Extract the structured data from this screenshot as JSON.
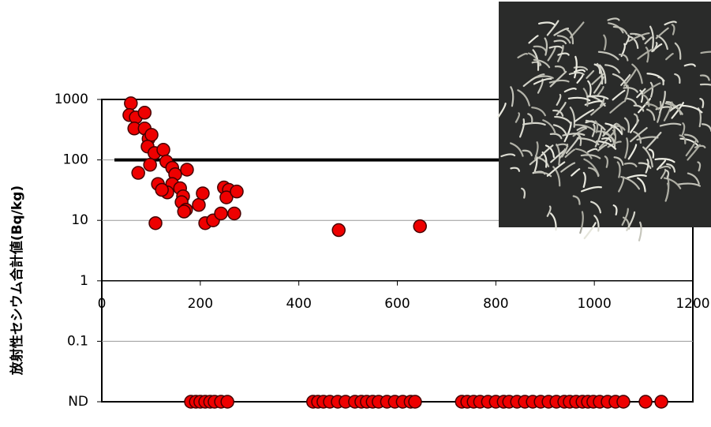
{
  "chart_data": {
    "type": "scatter",
    "ylabel": "放射性セシウム合計値(Bq/kg)",
    "xlim": [
      0,
      1200
    ],
    "xticks": [
      0,
      200,
      400,
      600,
      800,
      1000,
      1200
    ],
    "ylim": [
      0.01,
      1000
    ],
    "yticks": [
      1000,
      100,
      10,
      1,
      0.1,
      {
        "value": 0.01,
        "label": "ND"
      }
    ],
    "ylog": true,
    "grid": true,
    "xaxis_crosses": 1,
    "hline": 100,
    "series": [
      {
        "color": "#ee0000",
        "x": [
          59,
          56,
          69,
          87,
          66,
          87,
          95,
          101,
          93,
          107,
          98,
          125,
          131,
          74,
          114,
          143,
          149,
          173,
          143,
          133,
          122,
          159,
          165,
          162,
          171,
          167,
          109,
          197,
          205,
          210,
          226,
          242,
          248,
          258,
          253,
          269,
          274,
          481,
          646,
          181,
          191,
          200,
          210,
          220,
          229,
          242,
          255,
          429,
          439,
          450,
          463,
          479,
          495,
          514,
          527,
          538,
          550,
          562,
          579,
          595,
          611,
          627,
          636,
          731,
          742,
          755,
          768,
          784,
          800,
          816,
          827,
          843,
          859,
          875,
          891,
          907,
          923,
          939,
          950,
          963,
          976,
          987,
          998,
          1011,
          1027,
          1043,
          1059,
          1104,
          1136
        ],
        "y": [
          865,
          552,
          504,
          604,
          331,
          331,
          224,
          260,
          166,
          130,
          83,
          147,
          94,
          61,
          40,
          74,
          58,
          69,
          40,
          29,
          32,
          34,
          25,
          20,
          15,
          14,
          9,
          18,
          28,
          9,
          10,
          13,
          35,
          32,
          24,
          13,
          30,
          6.9,
          8,
          0.01,
          0.01,
          0.01,
          0.01,
          0.01,
          0.01,
          0.01,
          0.01,
          0.01,
          0.01,
          0.01,
          0.01,
          0.01,
          0.01,
          0.01,
          0.01,
          0.01,
          0.01,
          0.01,
          0.01,
          0.01,
          0.01,
          0.01,
          0.01,
          0.01,
          0.01,
          0.01,
          0.01,
          0.01,
          0.01,
          0.01,
          0.01,
          0.01,
          0.01,
          0.01,
          0.01,
          0.01,
          0.01,
          0.01,
          0.01,
          0.01,
          0.01,
          0.01,
          0.01,
          0.01,
          0.01,
          0.01,
          0.01,
          0.01,
          0.01
        ]
      }
    ]
  }
}
